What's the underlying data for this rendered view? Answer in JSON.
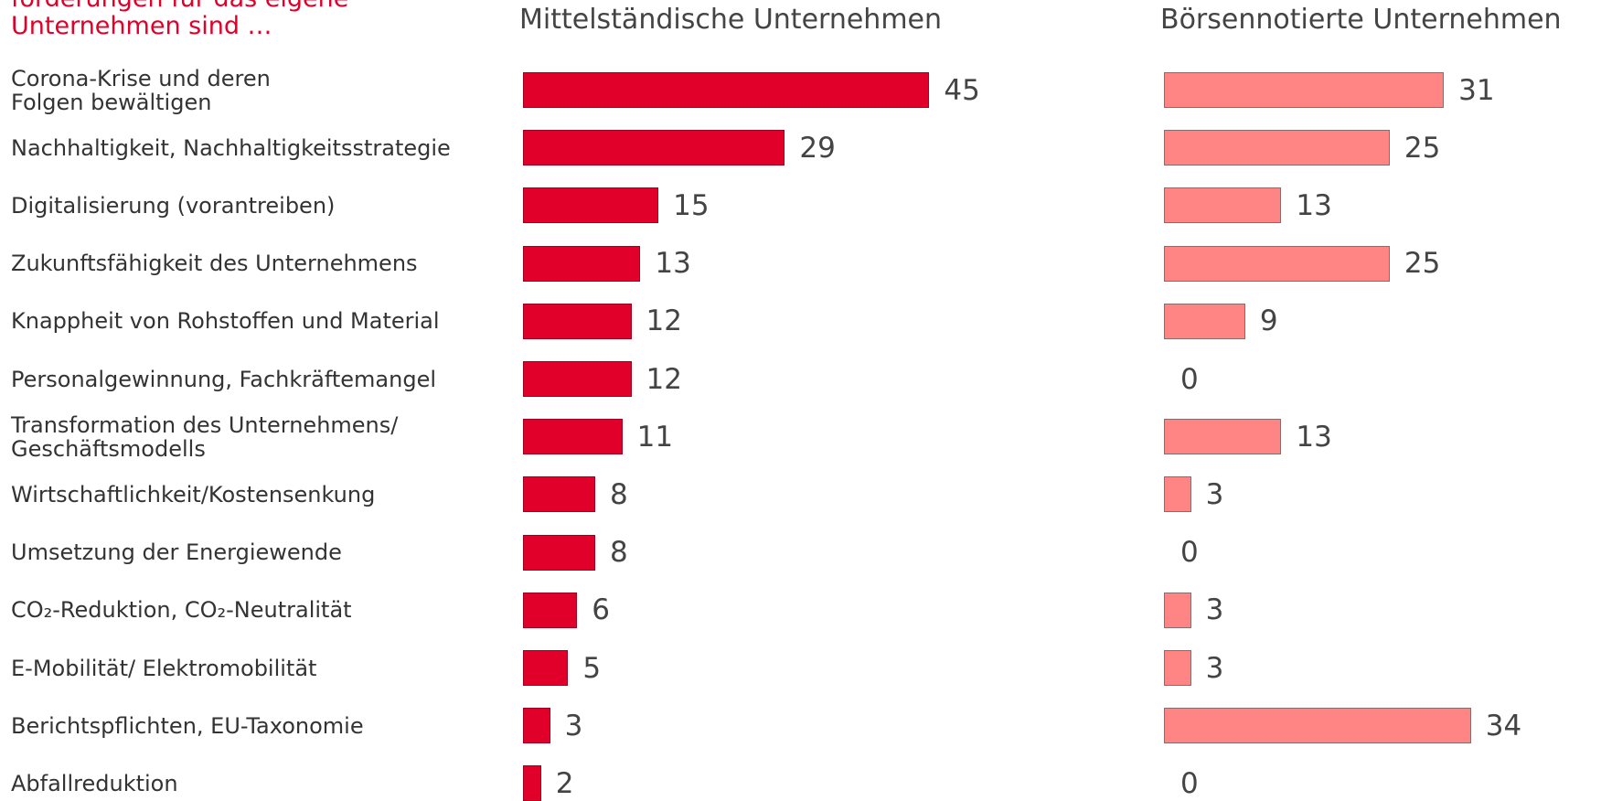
{
  "chart_data": {
    "type": "bar",
    "title": "forderungen für das eigene\nUnternehmen sind …",
    "categories": [
      "Corona-Krise und deren\nFolgen bewältigen",
      "Nachhaltigkeit, Nachhaltigkeitsstrategie",
      "Digitalisierung (vorantreiben)",
      "Zukunftsfähigkeit des Unternehmens",
      "Knappheit von Rohstoffen und Material",
      "Personalgewinnung, Fachkräftemangel",
      "Transformation des Unternehmens/\nGeschäftsmodells",
      "Wirtschaftlichkeit/Kostensenkung",
      "Umsetzung der Energiewende",
      "CO₂-Reduktion, CO₂-Neutralität",
      "E-Mobilität/ Elektromobilität",
      "Berichtspflichten, EU-Taxonomie",
      "Abfallreduktion"
    ],
    "series": [
      {
        "name": "Mittelständische Unternehmen",
        "color": "#e0002a",
        "values": [
          45,
          29,
          15,
          13,
          12,
          12,
          11,
          8,
          8,
          6,
          5,
          3,
          2
        ]
      },
      {
        "name": "Börsennotierte Unternehmen",
        "color": "#ff8585",
        "values": [
          31,
          25,
          13,
          25,
          9,
          0,
          13,
          3,
          0,
          3,
          3,
          34,
          0
        ]
      }
    ]
  }
}
